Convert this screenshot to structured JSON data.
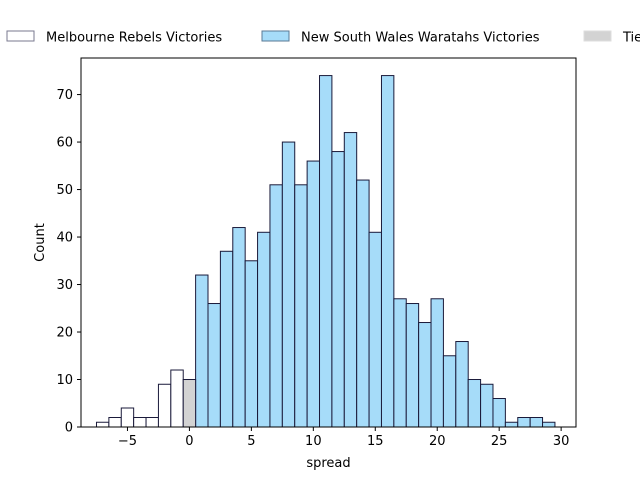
{
  "chart_data": {
    "type": "bar",
    "title": "",
    "xlabel": "spread",
    "ylabel": "Count",
    "xlim": [
      -8.75,
      31.2
    ],
    "ylim": [
      0,
      77.7
    ],
    "x_ticks": [
      -5,
      0,
      5,
      10,
      15,
      20,
      25,
      30
    ],
    "x_tick_labels": [
      "−5",
      "0",
      "5",
      "10",
      "15",
      "20",
      "25",
      "30"
    ],
    "y_ticks": [
      0,
      10,
      20,
      30,
      40,
      50,
      60,
      70
    ],
    "y_tick_labels": [
      "0",
      "10",
      "20",
      "30",
      "40",
      "50",
      "60",
      "70"
    ],
    "grid": false,
    "legend_placement": "top, outside plot",
    "bin_width": 1,
    "bin_centers": [
      -7,
      -6,
      -5,
      -4,
      -3,
      -2,
      -1,
      0,
      1,
      2,
      3,
      4,
      5,
      6,
      7,
      8,
      9,
      10,
      11,
      12,
      13,
      14,
      15,
      16,
      17,
      18,
      19,
      20,
      21,
      22,
      23,
      24,
      25,
      26,
      27,
      28,
      29
    ],
    "series": [
      {
        "name": "Melbourne Rebels Victories",
        "color": "#ffffff",
        "edge": "#1a1a3a",
        "legend_edge": "#7a7a8f",
        "bins": [
          -7,
          -6,
          -5,
          -4,
          -3,
          -2,
          -1
        ],
        "values": [
          1,
          2,
          4,
          2,
          2,
          9,
          12
        ]
      },
      {
        "name": "New South Wales Waratahs Victories",
        "color": "#a6dcf9",
        "edge": "#1a1a3a",
        "legend_edge": "#5a7a95",
        "bins": [
          1,
          2,
          3,
          4,
          5,
          6,
          7,
          8,
          9,
          10,
          11,
          12,
          13,
          14,
          15,
          16,
          17,
          18,
          19,
          20,
          21,
          22,
          23,
          24,
          25,
          26,
          27,
          28,
          29
        ],
        "values": [
          32,
          26,
          37,
          42,
          35,
          41,
          51,
          60,
          51,
          56,
          74,
          58,
          62,
          52,
          41,
          74,
          27,
          26,
          22,
          27,
          15,
          18,
          10,
          9,
          6,
          1,
          2,
          2,
          1
        ]
      },
      {
        "name": "Ties",
        "color": "#d3d3d3",
        "edge": "#1a1a3a",
        "legend_edge": "#dedede",
        "bins": [
          0
        ],
        "values": [
          10
        ]
      }
    ]
  }
}
